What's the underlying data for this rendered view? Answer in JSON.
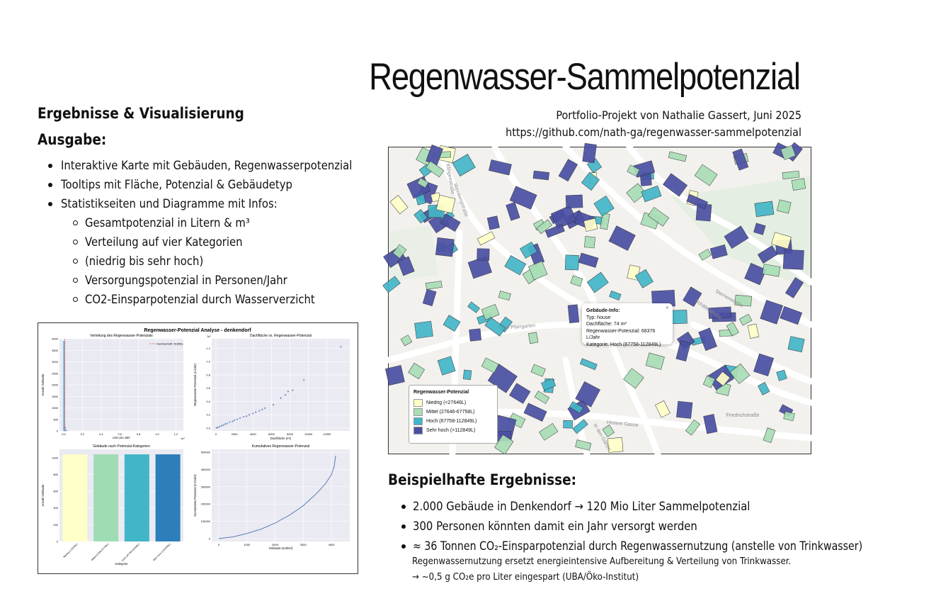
{
  "header": {
    "title": "Regenwasser-Sammelpotenzial",
    "author_line": "Portfolio-Projekt von Nathalie Gassert, Juni 2025",
    "url": "https://github.com/nath-ga/regenwasser-sammelpotenzial"
  },
  "left": {
    "section_heading": "Ergebnisse & Visualisierung",
    "output_heading": "Ausgabe:",
    "bullets": [
      "Interaktive Karte mit Gebäuden, Regenwasserpotenzial",
      "Tooltips mit Fläche, Potenzial & Gebäudetyp",
      "Statistikseiten und Diagramme mit Infos:"
    ],
    "sub_bullets": [
      "Gesamtpotenzial in Litern & m³",
      "Verteilung auf vier Kategorien",
      "(niedrig bis sehr hoch)",
      "Versorgungspotenzial in Personen/Jahr",
      "CO2-Einsparpotenzial durch Wasserverzicht"
    ]
  },
  "dashboard": {
    "suptitle": "Regenwasser-Potenzial Analyse - denkendorf",
    "chart_data": [
      {
        "type": "bar",
        "title": "Verteilung des Regenwasser-Potenzials",
        "xlabel": "Liter pro Jahr",
        "ylabel": "Anzahl Gebäude",
        "x_multiplier": "1e7",
        "legend": "Durchschnitt: 51656L",
        "x_ticks": [
          "0.0",
          "0.2",
          "0.4",
          "0.6",
          "0.8",
          "1.0",
          "1.2"
        ],
        "y_ticks": [
          "0",
          "500",
          "1000",
          "1500",
          "2000",
          "2500",
          "3000",
          "3500",
          "4000"
        ],
        "bins": [
          {
            "x": 0.003,
            "count": 3900
          },
          {
            "x": 0.01,
            "count": 180
          },
          {
            "x": 0.02,
            "count": 40
          },
          {
            "x": 0.03,
            "count": 10
          }
        ]
      },
      {
        "type": "scatter",
        "title": "Dachfläche vs. Regenwasser-Potenzial",
        "xlabel": "Dachfläche (m²)",
        "ylabel": "Regenwasser-Potenzial (L/Jahr)",
        "y_multiplier": "1e7",
        "x_ticks": [
          "0",
          "2000",
          "4000",
          "6000",
          "8000",
          "10000",
          "12000"
        ],
        "y_ticks": [
          "0.0",
          "0.2",
          "0.4",
          "0.6",
          "0.8",
          "1.0",
          "1.2"
        ],
        "points": [
          [
            50,
            0.003
          ],
          [
            200,
            0.01
          ],
          [
            400,
            0.02
          ],
          [
            600,
            0.035
          ],
          [
            800,
            0.045
          ],
          [
            1000,
            0.06
          ],
          [
            1200,
            0.07
          ],
          [
            1500,
            0.09
          ],
          [
            1800,
            0.1
          ],
          [
            2000,
            0.12
          ],
          [
            2300,
            0.13
          ],
          [
            2600,
            0.15
          ],
          [
            3000,
            0.17
          ],
          [
            3300,
            0.18
          ],
          [
            3600,
            0.2
          ],
          [
            4000,
            0.22
          ],
          [
            4300,
            0.24
          ],
          [
            4700,
            0.26
          ],
          [
            5000,
            0.28
          ],
          [
            5300,
            0.3
          ],
          [
            6200,
            0.35
          ],
          [
            7000,
            0.45
          ],
          [
            7500,
            0.5
          ],
          [
            7800,
            0.55
          ],
          [
            8300,
            0.57
          ],
          [
            9500,
            0.72
          ],
          [
            13500,
            1.22
          ]
        ]
      },
      {
        "type": "bar",
        "title": "Gebäude nach Potenzial-Kategorien",
        "xlabel": "Kategorie",
        "ylabel": "Anzahl Gebäude",
        "y_ticks": [
          "0",
          "200",
          "400",
          "600",
          "800",
          "1000"
        ],
        "categories": [
          "Niedrig (<27646L)",
          "Mittel (27646-67758L)",
          "Hoch (67758-112849L)",
          "Sehr hoch (>112849L)"
        ],
        "values": [
          1040,
          1040,
          1040,
          1040
        ],
        "colors": [
          "#ffffc8",
          "#9fdcb4",
          "#43b5c8",
          "#2c7fb8"
        ]
      },
      {
        "type": "line",
        "title": "Kumulatives Regenwasser-Potenzial",
        "xlabel": "Gebäude (sortiert)",
        "ylabel": "Kumulatives Potenzial (m³/Jahr)",
        "x_ticks": [
          "0",
          "1000",
          "2000",
          "3000",
          "4000"
        ],
        "y_ticks": [
          "0",
          "100000",
          "200000",
          "300000",
          "400000",
          "500000"
        ],
        "x": [
          0,
          500,
          1000,
          1500,
          2000,
          2500,
          3000,
          3500,
          3800,
          4000,
          4100,
          4150
        ],
        "y": [
          0,
          10000,
          30000,
          55000,
          90000,
          135000,
          190000,
          265000,
          320000,
          370000,
          420000,
          480000
        ]
      }
    ]
  },
  "map": {
    "popup": {
      "title": "Gebäude-Info:",
      "typ": "Typ: house",
      "flaeche": "Dachfläche: 74 m²",
      "potenzial": "Regenwasser-Potenzial: 68376 L/Jahr",
      "kategorie": "Kategorie: Hoch (67758-112849L)",
      "close": "×"
    },
    "legend": {
      "title": "Regenwasser-Potenzial",
      "items": [
        {
          "label": "Niedrig (<27646L)",
          "color": "#ffffc8"
        },
        {
          "label": "Mittel (27646-67758L)",
          "color": "#a8ddb5"
        },
        {
          "label": "Hoch (67758-112849L)",
          "color": "#43b5c8"
        },
        {
          "label": "Sehr hoch (>112849L)",
          "color": "#4a4fa3"
        }
      ]
    },
    "street_labels": [
      "Klingenstraße",
      "Weinbergstraße",
      "Im Pfarrgarten",
      "Schäferstraße",
      "Friedrichstraße",
      "Hintere Gasse",
      "In den Gärten",
      "Sternenstraße"
    ]
  },
  "results": {
    "heading": "Beispielhafte Ergebnisse:",
    "bullets": [
      "2.000 Gebäude in Denkendorf → 120 Mio Liter Sammelpotenzial",
      "300 Personen könnten damit ein Jahr versorgt werden",
      "≈ 36 Tonnen CO₂-Einsparpotenzial durch Regenwassernutzung (anstelle von Trinkwasser)"
    ],
    "note1": "Regenwassernutzung ersetzt energieintensive Aufbereitung & Verteilung von Trinkwasser.",
    "note2": "→ ~0,5 g CO₂e pro Liter eingespart (UBA/Öko-Institut)"
  }
}
